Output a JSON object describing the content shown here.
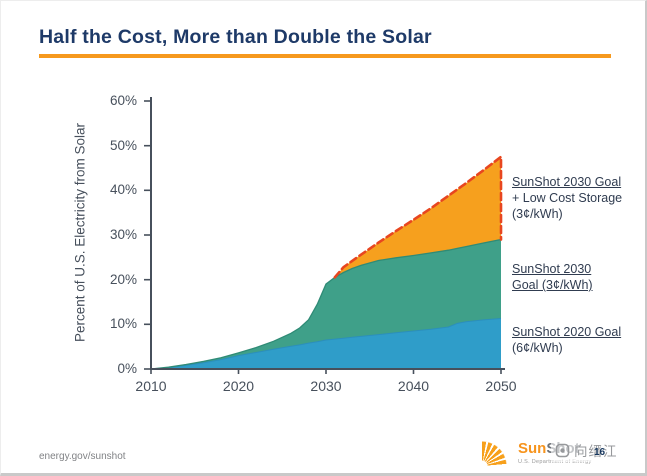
{
  "slide": {
    "title": "Half the Cost, More than Double the Solar",
    "footer_left": "energy.gov/sunshot",
    "page_number": "16",
    "logo": {
      "sun": "Sun",
      "shot": "Shot",
      "tagline": "U.S. Department of Energy"
    },
    "watermark": {
      "text": "向缙江",
      "icon": "rounded-square-icon"
    }
  },
  "colors": {
    "accent_orange": "#f6991d",
    "title_navy": "#1e3a68",
    "axis": "#47505c",
    "dashed_line": "#e8461f",
    "area_blue": "#2f9dc9",
    "area_teal": "#3fa089",
    "area_orange": "#f6a01e"
  },
  "chart_data": {
    "type": "area",
    "stacked": true,
    "title": "",
    "xlabel": "",
    "ylabel": "Percent of U.S. Electricity from Solar",
    "xlim": [
      2010,
      2050
    ],
    "ylim": [
      0,
      60
    ],
    "grid": false,
    "x_ticks": [
      "2010",
      "2020",
      "2030",
      "2040",
      "2050"
    ],
    "y_ticks": [
      "0%",
      "10%",
      "20%",
      "30%",
      "40%",
      "50%",
      "60%"
    ],
    "x": [
      2010,
      2012,
      2014,
      2016,
      2018,
      2020,
      2022,
      2024,
      2026,
      2027,
      2028,
      2029,
      2030,
      2031,
      2032,
      2033,
      2034,
      2036,
      2038,
      2040,
      2042,
      2044,
      2045,
      2046,
      2048,
      2050
    ],
    "series": [
      {
        "name": "SunShot 2020 Goal (6¢/kWh)",
        "color": "#2f9dc9",
        "cumulative_pct": [
          0,
          0.3,
          0.8,
          1.4,
          2.1,
          3.0,
          3.7,
          4.4,
          5.1,
          5.4,
          5.8,
          6.1,
          6.5,
          6.7,
          6.9,
          7.1,
          7.3,
          7.7,
          8.1,
          8.5,
          8.9,
          9.4,
          10.2,
          10.6,
          11.0,
          11.3
        ]
      },
      {
        "name": "SunShot 2030 Goal (3¢/kWh)",
        "color": "#3fa089",
        "cumulative_pct": [
          0,
          0.4,
          1.0,
          1.7,
          2.5,
          3.6,
          4.8,
          6.2,
          8.0,
          9.2,
          11.0,
          14.5,
          19.0,
          20.5,
          21.6,
          22.5,
          23.2,
          24.3,
          24.9,
          25.4,
          26.0,
          26.6,
          27.0,
          27.4,
          28.2,
          29.0
        ]
      },
      {
        "name": "SunShot 2030 Goal + Low Cost Storage (3¢/kWh)",
        "color": "#f6a01e",
        "top_line_style": "dashed",
        "top_line_color": "#e8461f",
        "cumulative_pct": [
          0,
          0.4,
          1.0,
          1.7,
          2.5,
          3.6,
          4.8,
          6.2,
          8.0,
          9.2,
          11.0,
          14.5,
          19.0,
          20.5,
          22.8,
          24.2,
          25.6,
          28.3,
          30.9,
          33.4,
          36.0,
          38.8,
          40.2,
          41.6,
          44.5,
          47.5
        ]
      }
    ],
    "legend": [
      {
        "lines": [
          "SunShot 2030 Goal",
          "+ Low Cost Storage",
          "(3¢/kWh)"
        ]
      },
      {
        "lines": [
          "SunShot 2030",
          "Goal (3¢/kWh)"
        ]
      },
      {
        "lines": [
          "SunShot 2020 Goal",
          "(6¢/kWh)"
        ]
      }
    ],
    "legend_position": "right"
  }
}
